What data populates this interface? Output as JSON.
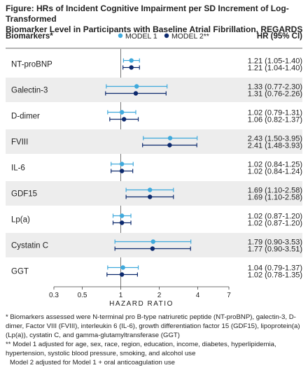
{
  "figure": {
    "title_line1": "Figure: HRs of Incident Cognitive Impairment per SD Increment of Log-Transformed",
    "title_line2": "Biomarker Level in Participants with Baseline Atrial Fibrillation, REGARDS",
    "col_biomarkers": "Biomarkers*",
    "col_hr": "HR (95% CI)",
    "footnotes": [
      "*  Biomarkers assessed were N-terminal pro B-type natriuretic peptide (NT-proBNP), galectin-3, D-dimer, Factor VIII (FVIII), interleukin 6 (IL-6), growth differentiation factor 15 (GDF15), lipoprotein(a) (Lp(a)), cystatin C, and gamma-glutamyltransferase (GGT)",
      "** Model 1 adjusted for age, sex, race, region, education, income, diabetes, hyperlipidemia, hypertension, systolic blood pressure, smoking, and alcohol use",
      "Model 2 adjusted for Model 1 + oral anticoagulation use"
    ]
  },
  "chart_data": {
    "type": "forest",
    "xlabel": "HAZARD RATIO",
    "xscale": "log",
    "xlim": [
      0.3,
      7
    ],
    "xticks": [
      0.3,
      0.5,
      1,
      2,
      4,
      7
    ],
    "xtick_labels": [
      "0.3",
      "0.5",
      "1",
      "2",
      "4",
      "7"
    ],
    "reference_line": 1,
    "legend": {
      "placement": "top-center"
    },
    "series": [
      {
        "name": "MODEL 1",
        "color": "#3fa9dc"
      },
      {
        "name": "MODEL 2**",
        "color": "#0d2a6e"
      }
    ],
    "rows": [
      {
        "label": "NT-proBNP",
        "m1": {
          "hr": 1.21,
          "lo": 1.05,
          "hi": 1.4,
          "text": "1.21 (1.05-1.40)"
        },
        "m2": {
          "hr": 1.21,
          "lo": 1.04,
          "hi": 1.4,
          "text": "1.21 (1.04-1.40)"
        }
      },
      {
        "label": "Galectin-3",
        "m1": {
          "hr": 1.33,
          "lo": 0.77,
          "hi": 2.3,
          "text": "1.33 (0.77-2.30)"
        },
        "m2": {
          "hr": 1.31,
          "lo": 0.76,
          "hi": 2.26,
          "text": "1.31 (0.76-2.26)"
        }
      },
      {
        "label": "D-dimer",
        "m1": {
          "hr": 1.02,
          "lo": 0.79,
          "hi": 1.31,
          "text": "1.02 (0.79-1.31)"
        },
        "m2": {
          "hr": 1.06,
          "lo": 0.82,
          "hi": 1.37,
          "text": "1.06 (0.82-1.37)"
        }
      },
      {
        "label": "FVIII",
        "m1": {
          "hr": 2.43,
          "lo": 1.5,
          "hi": 3.95,
          "text": "2.43 (1.50-3.95)"
        },
        "m2": {
          "hr": 2.41,
          "lo": 1.48,
          "hi": 3.93,
          "text": "2.41 (1.48-3.93)"
        }
      },
      {
        "label": "IL-6",
        "m1": {
          "hr": 1.02,
          "lo": 0.84,
          "hi": 1.25,
          "text": "1.02 (0.84-1.25)"
        },
        "m2": {
          "hr": 1.02,
          "lo": 0.84,
          "hi": 1.24,
          "text": "1.02 (0.84-1.24)"
        }
      },
      {
        "label": "GDF15",
        "m1": {
          "hr": 1.69,
          "lo": 1.1,
          "hi": 2.58,
          "text": "1.69 (1.10-2.58)"
        },
        "m2": {
          "hr": 1.69,
          "lo": 1.1,
          "hi": 2.58,
          "text": "1.69 (1.10-2.58)"
        }
      },
      {
        "label": "Lp(a)",
        "m1": {
          "hr": 1.02,
          "lo": 0.87,
          "hi": 1.2,
          "text": "1.02 (0.87-1.20)"
        },
        "m2": {
          "hr": 1.02,
          "lo": 0.87,
          "hi": 1.2,
          "text": "1.02 (0.87-1.20)"
        }
      },
      {
        "label": "Cystatin C",
        "m1": {
          "hr": 1.79,
          "lo": 0.9,
          "hi": 3.53,
          "text": "1.79 (0.90-3.53)"
        },
        "m2": {
          "hr": 1.77,
          "lo": 0.9,
          "hi": 3.51,
          "text": "1.77 (0.90-3.51)"
        }
      },
      {
        "label": "GGT",
        "m1": {
          "hr": 1.04,
          "lo": 0.79,
          "hi": 1.37,
          "text": "1.04 (0.79-1.37)"
        },
        "m2": {
          "hr": 1.02,
          "lo": 0.78,
          "hi": 1.35,
          "text": "1.02 (0.78-1.35)"
        }
      }
    ]
  }
}
